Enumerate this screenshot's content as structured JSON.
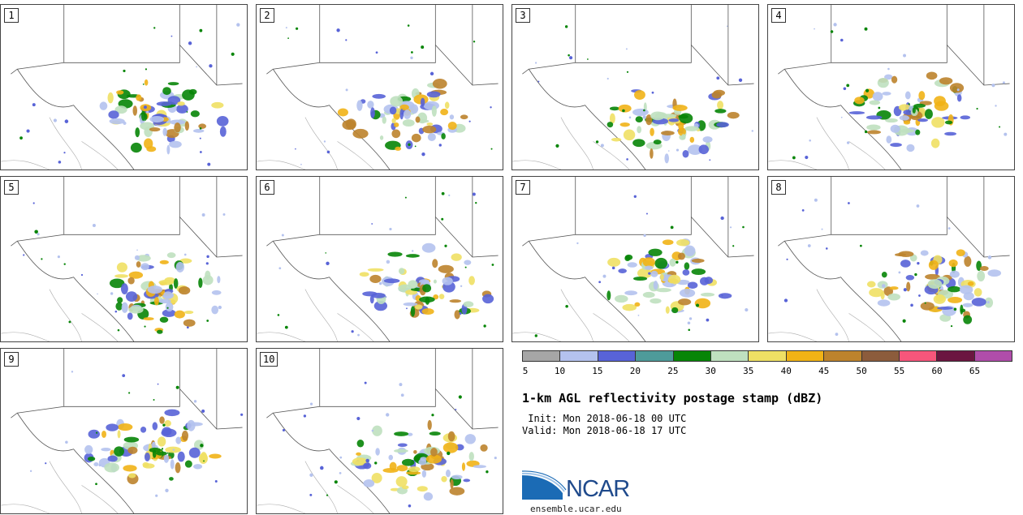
{
  "panels": [
    {
      "label": "1"
    },
    {
      "label": "2"
    },
    {
      "label": "3"
    },
    {
      "label": "4"
    },
    {
      "label": "5"
    },
    {
      "label": "6"
    },
    {
      "label": "7"
    },
    {
      "label": "8"
    },
    {
      "label": "9"
    },
    {
      "label": "10"
    }
  ],
  "colorbar": {
    "colors": [
      "#a6a6a6",
      "#b4c2ee",
      "#5863d7",
      "#4e9b9a",
      "#078507",
      "#bfe0bf",
      "#efe064",
      "#f1b316",
      "#bd832c",
      "#8c5c3c",
      "#f7567b",
      "#6b1640",
      "#b04daa"
    ],
    "ticks": [
      "5",
      "10",
      "15",
      "20",
      "25",
      "30",
      "35",
      "40",
      "45",
      "50",
      "55",
      "60",
      "65"
    ]
  },
  "title": "1-km AGL reflectivity postage stamp (dBZ)",
  "init_line": " Init: Mon 2018-06-18 00 UTC",
  "valid_line": "Valid: Mon 2018-06-18 17 UTC",
  "logo": {
    "text": "NCAR",
    "color": "#1f4a8c",
    "swoosh_color": "#1b6bb5"
  },
  "site_url": "ensemble.ucar.edu"
}
